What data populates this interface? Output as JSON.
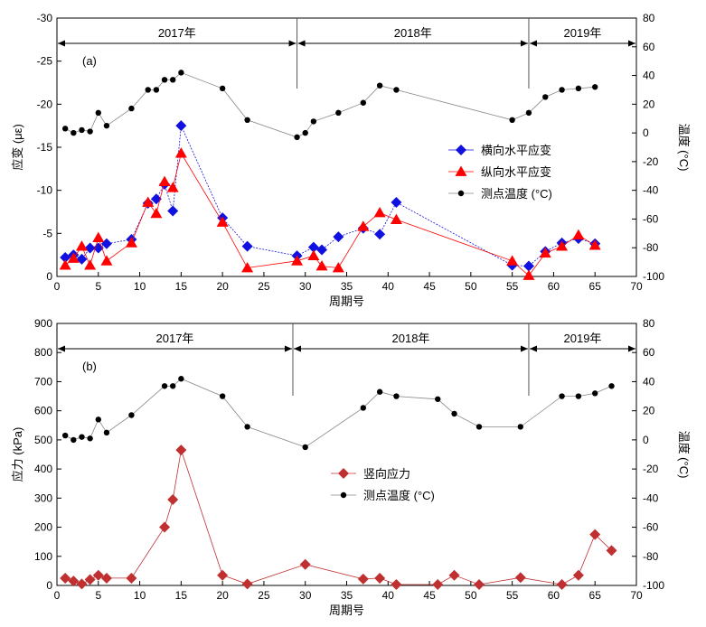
{
  "chart_data": [
    {
      "type": "line",
      "panel_label": "(a)",
      "xlabel": "周期号",
      "ylabel_left": "应变 (με)",
      "ylabel_right": "温度 (°C)",
      "xlim": [
        0,
        70
      ],
      "xticks": [
        0,
        5,
        10,
        15,
        20,
        25,
        30,
        35,
        40,
        45,
        50,
        55,
        60,
        65,
        70
      ],
      "ylim_left": [
        0,
        -30
      ],
      "yticks_left": [
        0,
        -5,
        -10,
        -15,
        -20,
        -25,
        -30
      ],
      "ylim_right": [
        -100,
        80
      ],
      "yticks_right": [
        -100,
        -80,
        -60,
        -40,
        -20,
        0,
        20,
        40,
        60,
        80
      ],
      "grid": false,
      "legend_position": "center-right",
      "year_bands": [
        {
          "label": "2017年",
          "from": 0,
          "to": 29
        },
        {
          "label": "2018年",
          "from": 29,
          "to": 57
        },
        {
          "label": "2019年",
          "from": 57,
          "to": 70
        }
      ],
      "year_dividers": [
        29,
        57
      ],
      "series": [
        {
          "name": "横向水平应变",
          "axis": "left",
          "color": "#1010e0",
          "marker": "diamond",
          "x": [
            1,
            2,
            3,
            4,
            5,
            6,
            9,
            11,
            12,
            13,
            14,
            15,
            20,
            23,
            29,
            31,
            32,
            34,
            37,
            39,
            41,
            55,
            57,
            59,
            61,
            63,
            65
          ],
          "y": [
            -2.2,
            -2.5,
            -2.0,
            -3.3,
            -3.3,
            -3.8,
            -4.3,
            -8.5,
            -9.0,
            -10.7,
            -7.6,
            -17.5,
            -6.8,
            -3.5,
            -2.4,
            -3.4,
            -3.1,
            -4.6,
            -5.6,
            -4.9,
            -8.6,
            -1.3,
            -1.2,
            -2.9,
            -3.9,
            -4.4,
            -3.8
          ]
        },
        {
          "name": "纵向水平应变",
          "axis": "left",
          "color": "#ff0000",
          "marker": "triangle",
          "x": [
            1,
            2,
            3,
            4,
            5,
            6,
            9,
            11,
            12,
            13,
            14,
            15,
            20,
            23,
            29,
            31,
            32,
            34,
            37,
            39,
            41,
            55,
            57,
            59,
            61,
            63,
            65
          ],
          "y": [
            -1.3,
            -2.1,
            -3.5,
            -1.3,
            -4.5,
            -1.8,
            -3.9,
            -8.6,
            -7.3,
            -11.0,
            -10.3,
            -14.3,
            -6.3,
            -1.0,
            -1.8,
            -2.4,
            -1.2,
            -1.0,
            -5.8,
            -7.4,
            -6.6,
            -1.8,
            -0.1,
            -2.7,
            -3.5,
            -4.8,
            -3.6
          ]
        },
        {
          "name": "测点温度 (°C)",
          "axis": "right",
          "color": "#000000",
          "marker": "dot",
          "x": [
            1,
            2,
            3,
            4,
            5,
            6,
            9,
            11,
            12,
            13,
            14,
            15,
            20,
            23,
            29,
            30,
            31,
            34,
            37,
            39,
            41,
            55,
            57,
            59,
            61,
            63,
            65
          ],
          "y": [
            3,
            0,
            2,
            1,
            14,
            5,
            17,
            30,
            30,
            37,
            37,
            42,
            31,
            9,
            -3,
            0,
            8,
            14,
            21,
            33,
            30,
            9,
            14,
            25,
            30,
            31,
            32
          ]
        }
      ]
    },
    {
      "type": "line",
      "panel_label": "(b)",
      "xlabel": "周期号",
      "ylabel_left": "应力 (kPa)",
      "ylabel_right": "温度 (°C)",
      "xlim": [
        0,
        70
      ],
      "xticks": [
        0,
        5,
        10,
        15,
        20,
        25,
        30,
        35,
        40,
        45,
        50,
        55,
        60,
        65,
        70
      ],
      "ylim_left": [
        0,
        900
      ],
      "yticks_left": [
        0,
        100,
        200,
        300,
        400,
        500,
        600,
        700,
        800,
        900
      ],
      "ylim_right": [
        -100,
        80
      ],
      "yticks_right": [
        -100,
        -80,
        -60,
        -40,
        -20,
        0,
        20,
        40,
        60,
        80
      ],
      "grid": false,
      "legend_position": "center",
      "year_bands": [
        {
          "label": "2017年",
          "from": 0,
          "to": 28.5
        },
        {
          "label": "2018年",
          "from": 28.5,
          "to": 57
        },
        {
          "label": "2019年",
          "from": 57,
          "to": 70
        }
      ],
      "year_dividers": [
        28.5,
        57
      ],
      "series": [
        {
          "name": "竖向应力",
          "axis": "left",
          "color": "#c03030",
          "marker": "diamond",
          "x": [
            1,
            2,
            3,
            4,
            5,
            6,
            9,
            13,
            14,
            15,
            20,
            23,
            30,
            37,
            39,
            41,
            46,
            48,
            51,
            56,
            61,
            63,
            65,
            67
          ],
          "y": [
            25,
            15,
            5,
            20,
            35,
            25,
            25,
            200,
            295,
            465,
            35,
            5,
            72,
            22,
            25,
            3,
            3,
            35,
            3,
            27,
            3,
            35,
            175,
            120
          ]
        },
        {
          "name": "测点温度 (°C)",
          "axis": "right",
          "color": "#000000",
          "marker": "dot",
          "x": [
            1,
            2,
            3,
            4,
            5,
            6,
            9,
            13,
            14,
            15,
            20,
            23,
            30,
            37,
            39,
            41,
            46,
            48,
            51,
            56,
            61,
            63,
            65,
            67
          ],
          "y": [
            3,
            0,
            2,
            1,
            14,
            5,
            17,
            37,
            37,
            42,
            30,
            9,
            -5,
            22,
            33,
            30,
            28,
            18,
            9,
            9,
            30,
            30,
            32,
            37
          ]
        }
      ]
    }
  ]
}
